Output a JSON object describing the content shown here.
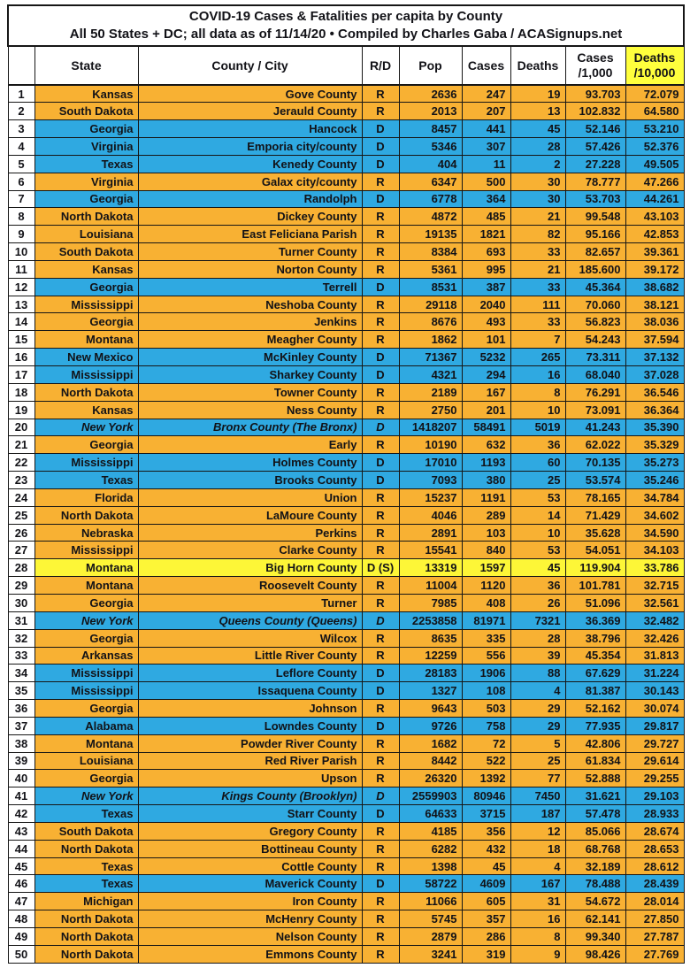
{
  "title": {
    "line1": "COVID-19 Cases & Fatalities per capita by County",
    "line2": "All 50 States + DC; all data as of 11/14/20  • Compiled by Charles Gaba / ACASignups.net"
  },
  "colors": {
    "republican_row": "#f8b133",
    "democrat_row": "#2fa9e1",
    "highlight_row": "#fdf637",
    "deaths_header_bg": "#ffff3d",
    "text": "#121217",
    "border": "#161616"
  },
  "chart_data": {
    "type": "table",
    "title": "COVID-19 Cases & Fatalities per capita by County",
    "subtitle": "All 50 States + DC; all data as of 11/14/20 • Compiled by Charles Gaba / ACASignups.net",
    "columns": {
      "rank": "",
      "state": "State",
      "county": "County / City",
      "rd": "R/D",
      "pop": "Pop",
      "cases": "Cases",
      "deaths": "Deaths",
      "cases_per_1000": "Cases\n/1,000",
      "deaths_per_10000": "Deaths\n/10,000"
    },
    "row_color_legend": {
      "R": "republican_row",
      "D": "democrat_row",
      "S": "highlight_row"
    },
    "rows": [
      {
        "rank": 1,
        "state": "Kansas",
        "county": "Gove County",
        "rd": "R",
        "pop": "2636",
        "cases": "247",
        "deaths": "19",
        "cases_per_1000": "93.703",
        "deaths_per_10000": "72.079",
        "color": "R",
        "italic": false
      },
      {
        "rank": 2,
        "state": "South Dakota",
        "county": "Jerauld County",
        "rd": "R",
        "pop": "2013",
        "cases": "207",
        "deaths": "13",
        "cases_per_1000": "102.832",
        "deaths_per_10000": "64.580",
        "color": "R",
        "italic": false
      },
      {
        "rank": 3,
        "state": "Georgia",
        "county": "Hancock",
        "rd": "D",
        "pop": "8457",
        "cases": "441",
        "deaths": "45",
        "cases_per_1000": "52.146",
        "deaths_per_10000": "53.210",
        "color": "D",
        "italic": false
      },
      {
        "rank": 4,
        "state": "Virginia",
        "county": "Emporia city/county",
        "rd": "D",
        "pop": "5346",
        "cases": "307",
        "deaths": "28",
        "cases_per_1000": "57.426",
        "deaths_per_10000": "52.376",
        "color": "D",
        "italic": false
      },
      {
        "rank": 5,
        "state": "Texas",
        "county": "Kenedy County",
        "rd": "D",
        "pop": "404",
        "cases": "11",
        "deaths": "2",
        "cases_per_1000": "27.228",
        "deaths_per_10000": "49.505",
        "color": "D",
        "italic": false
      },
      {
        "rank": 6,
        "state": "Virginia",
        "county": "Galax city/county",
        "rd": "R",
        "pop": "6347",
        "cases": "500",
        "deaths": "30",
        "cases_per_1000": "78.777",
        "deaths_per_10000": "47.266",
        "color": "R",
        "italic": false
      },
      {
        "rank": 7,
        "state": "Georgia",
        "county": "Randolph",
        "rd": "D",
        "pop": "6778",
        "cases": "364",
        "deaths": "30",
        "cases_per_1000": "53.703",
        "deaths_per_10000": "44.261",
        "color": "D",
        "italic": false
      },
      {
        "rank": 8,
        "state": "North Dakota",
        "county": "Dickey County",
        "rd": "R",
        "pop": "4872",
        "cases": "485",
        "deaths": "21",
        "cases_per_1000": "99.548",
        "deaths_per_10000": "43.103",
        "color": "R",
        "italic": false
      },
      {
        "rank": 9,
        "state": "Louisiana",
        "county": "East Feliciana Parish",
        "rd": "R",
        "pop": "19135",
        "cases": "1821",
        "deaths": "82",
        "cases_per_1000": "95.166",
        "deaths_per_10000": "42.853",
        "color": "R",
        "italic": false
      },
      {
        "rank": 10,
        "state": "South Dakota",
        "county": "Turner County",
        "rd": "R",
        "pop": "8384",
        "cases": "693",
        "deaths": "33",
        "cases_per_1000": "82.657",
        "deaths_per_10000": "39.361",
        "color": "R",
        "italic": false
      },
      {
        "rank": 11,
        "state": "Kansas",
        "county": "Norton County",
        "rd": "R",
        "pop": "5361",
        "cases": "995",
        "deaths": "21",
        "cases_per_1000": "185.600",
        "deaths_per_10000": "39.172",
        "color": "R",
        "italic": false
      },
      {
        "rank": 12,
        "state": "Georgia",
        "county": "Terrell",
        "rd": "D",
        "pop": "8531",
        "cases": "387",
        "deaths": "33",
        "cases_per_1000": "45.364",
        "deaths_per_10000": "38.682",
        "color": "D",
        "italic": false
      },
      {
        "rank": 13,
        "state": "Mississippi",
        "county": "Neshoba County",
        "rd": "R",
        "pop": "29118",
        "cases": "2040",
        "deaths": "111",
        "cases_per_1000": "70.060",
        "deaths_per_10000": "38.121",
        "color": "R",
        "italic": false
      },
      {
        "rank": 14,
        "state": "Georgia",
        "county": "Jenkins",
        "rd": "R",
        "pop": "8676",
        "cases": "493",
        "deaths": "33",
        "cases_per_1000": "56.823",
        "deaths_per_10000": "38.036",
        "color": "R",
        "italic": false
      },
      {
        "rank": 15,
        "state": "Montana",
        "county": "Meagher County",
        "rd": "R",
        "pop": "1862",
        "cases": "101",
        "deaths": "7",
        "cases_per_1000": "54.243",
        "deaths_per_10000": "37.594",
        "color": "R",
        "italic": false
      },
      {
        "rank": 16,
        "state": "New Mexico",
        "county": "McKinley County",
        "rd": "D",
        "pop": "71367",
        "cases": "5232",
        "deaths": "265",
        "cases_per_1000": "73.311",
        "deaths_per_10000": "37.132",
        "color": "D",
        "italic": false
      },
      {
        "rank": 17,
        "state": "Mississippi",
        "county": "Sharkey County",
        "rd": "D",
        "pop": "4321",
        "cases": "294",
        "deaths": "16",
        "cases_per_1000": "68.040",
        "deaths_per_10000": "37.028",
        "color": "D",
        "italic": false
      },
      {
        "rank": 18,
        "state": "North Dakota",
        "county": "Towner County",
        "rd": "R",
        "pop": "2189",
        "cases": "167",
        "deaths": "8",
        "cases_per_1000": "76.291",
        "deaths_per_10000": "36.546",
        "color": "R",
        "italic": false
      },
      {
        "rank": 19,
        "state": "Kansas",
        "county": "Ness County",
        "rd": "R",
        "pop": "2750",
        "cases": "201",
        "deaths": "10",
        "cases_per_1000": "73.091",
        "deaths_per_10000": "36.364",
        "color": "R",
        "italic": false
      },
      {
        "rank": 20,
        "state": "New York",
        "county": "Bronx County (The Bronx)",
        "rd": "D",
        "pop": "1418207",
        "cases": "58491",
        "deaths": "5019",
        "cases_per_1000": "41.243",
        "deaths_per_10000": "35.390",
        "color": "D",
        "italic": true
      },
      {
        "rank": 21,
        "state": "Georgia",
        "county": "Early",
        "rd": "R",
        "pop": "10190",
        "cases": "632",
        "deaths": "36",
        "cases_per_1000": "62.022",
        "deaths_per_10000": "35.329",
        "color": "R",
        "italic": false
      },
      {
        "rank": 22,
        "state": "Mississippi",
        "county": "Holmes County",
        "rd": "D",
        "pop": "17010",
        "cases": "1193",
        "deaths": "60",
        "cases_per_1000": "70.135",
        "deaths_per_10000": "35.273",
        "color": "D",
        "italic": false
      },
      {
        "rank": 23,
        "state": "Texas",
        "county": "Brooks County",
        "rd": "D",
        "pop": "7093",
        "cases": "380",
        "deaths": "25",
        "cases_per_1000": "53.574",
        "deaths_per_10000": "35.246",
        "color": "D",
        "italic": false
      },
      {
        "rank": 24,
        "state": "Florida",
        "county": "Union",
        "rd": "R",
        "pop": "15237",
        "cases": "1191",
        "deaths": "53",
        "cases_per_1000": "78.165",
        "deaths_per_10000": "34.784",
        "color": "R",
        "italic": false
      },
      {
        "rank": 25,
        "state": "North Dakota",
        "county": "LaMoure County",
        "rd": "R",
        "pop": "4046",
        "cases": "289",
        "deaths": "14",
        "cases_per_1000": "71.429",
        "deaths_per_10000": "34.602",
        "color": "R",
        "italic": false
      },
      {
        "rank": 26,
        "state": "Nebraska",
        "county": "Perkins",
        "rd": "R",
        "pop": "2891",
        "cases": "103",
        "deaths": "10",
        "cases_per_1000": "35.628",
        "deaths_per_10000": "34.590",
        "color": "R",
        "italic": false
      },
      {
        "rank": 27,
        "state": "Mississippi",
        "county": "Clarke County",
        "rd": "R",
        "pop": "15541",
        "cases": "840",
        "deaths": "53",
        "cases_per_1000": "54.051",
        "deaths_per_10000": "34.103",
        "color": "R",
        "italic": false
      },
      {
        "rank": 28,
        "state": "Montana",
        "county": "Big Horn County",
        "rd": "D (S)",
        "pop": "13319",
        "cases": "1597",
        "deaths": "45",
        "cases_per_1000": "119.904",
        "deaths_per_10000": "33.786",
        "color": "S",
        "italic": false
      },
      {
        "rank": 29,
        "state": "Montana",
        "county": "Roosevelt County",
        "rd": "R",
        "pop": "11004",
        "cases": "1120",
        "deaths": "36",
        "cases_per_1000": "101.781",
        "deaths_per_10000": "32.715",
        "color": "R",
        "italic": false
      },
      {
        "rank": 30,
        "state": "Georgia",
        "county": "Turner",
        "rd": "R",
        "pop": "7985",
        "cases": "408",
        "deaths": "26",
        "cases_per_1000": "51.096",
        "deaths_per_10000": "32.561",
        "color": "R",
        "italic": false
      },
      {
        "rank": 31,
        "state": "New York",
        "county": "Queens County (Queens)",
        "rd": "D",
        "pop": "2253858",
        "cases": "81971",
        "deaths": "7321",
        "cases_per_1000": "36.369",
        "deaths_per_10000": "32.482",
        "color": "D",
        "italic": true
      },
      {
        "rank": 32,
        "state": "Georgia",
        "county": "Wilcox",
        "rd": "R",
        "pop": "8635",
        "cases": "335",
        "deaths": "28",
        "cases_per_1000": "38.796",
        "deaths_per_10000": "32.426",
        "color": "R",
        "italic": false
      },
      {
        "rank": 33,
        "state": "Arkansas",
        "county": "Little River County",
        "rd": "R",
        "pop": "12259",
        "cases": "556",
        "deaths": "39",
        "cases_per_1000": "45.354",
        "deaths_per_10000": "31.813",
        "color": "R",
        "italic": false
      },
      {
        "rank": 34,
        "state": "Mississippi",
        "county": "Leflore County",
        "rd": "D",
        "pop": "28183",
        "cases": "1906",
        "deaths": "88",
        "cases_per_1000": "67.629",
        "deaths_per_10000": "31.224",
        "color": "D",
        "italic": false
      },
      {
        "rank": 35,
        "state": "Mississippi",
        "county": "Issaquena County",
        "rd": "D",
        "pop": "1327",
        "cases": "108",
        "deaths": "4",
        "cases_per_1000": "81.387",
        "deaths_per_10000": "30.143",
        "color": "D",
        "italic": false
      },
      {
        "rank": 36,
        "state": "Georgia",
        "county": "Johnson",
        "rd": "R",
        "pop": "9643",
        "cases": "503",
        "deaths": "29",
        "cases_per_1000": "52.162",
        "deaths_per_10000": "30.074",
        "color": "R",
        "italic": false
      },
      {
        "rank": 37,
        "state": "Alabama",
        "county": "Lowndes County",
        "rd": "D",
        "pop": "9726",
        "cases": "758",
        "deaths": "29",
        "cases_per_1000": "77.935",
        "deaths_per_10000": "29.817",
        "color": "D",
        "italic": false
      },
      {
        "rank": 38,
        "state": "Montana",
        "county": "Powder River County",
        "rd": "R",
        "pop": "1682",
        "cases": "72",
        "deaths": "5",
        "cases_per_1000": "42.806",
        "deaths_per_10000": "29.727",
        "color": "R",
        "italic": false
      },
      {
        "rank": 39,
        "state": "Louisiana",
        "county": "Red River Parish",
        "rd": "R",
        "pop": "8442",
        "cases": "522",
        "deaths": "25",
        "cases_per_1000": "61.834",
        "deaths_per_10000": "29.614",
        "color": "R",
        "italic": false
      },
      {
        "rank": 40,
        "state": "Georgia",
        "county": "Upson",
        "rd": "R",
        "pop": "26320",
        "cases": "1392",
        "deaths": "77",
        "cases_per_1000": "52.888",
        "deaths_per_10000": "29.255",
        "color": "R",
        "italic": false
      },
      {
        "rank": 41,
        "state": "New York",
        "county": "Kings County (Brooklyn)",
        "rd": "D",
        "pop": "2559903",
        "cases": "80946",
        "deaths": "7450",
        "cases_per_1000": "31.621",
        "deaths_per_10000": "29.103",
        "color": "D",
        "italic": true
      },
      {
        "rank": 42,
        "state": "Texas",
        "county": "Starr County",
        "rd": "D",
        "pop": "64633",
        "cases": "3715",
        "deaths": "187",
        "cases_per_1000": "57.478",
        "deaths_per_10000": "28.933",
        "color": "D",
        "italic": false
      },
      {
        "rank": 43,
        "state": "South Dakota",
        "county": "Gregory County",
        "rd": "R",
        "pop": "4185",
        "cases": "356",
        "deaths": "12",
        "cases_per_1000": "85.066",
        "deaths_per_10000": "28.674",
        "color": "R",
        "italic": false
      },
      {
        "rank": 44,
        "state": "North Dakota",
        "county": "Bottineau County",
        "rd": "R",
        "pop": "6282",
        "cases": "432",
        "deaths": "18",
        "cases_per_1000": "68.768",
        "deaths_per_10000": "28.653",
        "color": "R",
        "italic": false
      },
      {
        "rank": 45,
        "state": "Texas",
        "county": "Cottle County",
        "rd": "R",
        "pop": "1398",
        "cases": "45",
        "deaths": "4",
        "cases_per_1000": "32.189",
        "deaths_per_10000": "28.612",
        "color": "R",
        "italic": false
      },
      {
        "rank": 46,
        "state": "Texas",
        "county": "Maverick County",
        "rd": "D",
        "pop": "58722",
        "cases": "4609",
        "deaths": "167",
        "cases_per_1000": "78.488",
        "deaths_per_10000": "28.439",
        "color": "D",
        "italic": false
      },
      {
        "rank": 47,
        "state": "Michigan",
        "county": "Iron County",
        "rd": "R",
        "pop": "11066",
        "cases": "605",
        "deaths": "31",
        "cases_per_1000": "54.672",
        "deaths_per_10000": "28.014",
        "color": "R",
        "italic": false
      },
      {
        "rank": 48,
        "state": "North Dakota",
        "county": "McHenry County",
        "rd": "R",
        "pop": "5745",
        "cases": "357",
        "deaths": "16",
        "cases_per_1000": "62.141",
        "deaths_per_10000": "27.850",
        "color": "R",
        "italic": false
      },
      {
        "rank": 49,
        "state": "North Dakota",
        "county": "Nelson County",
        "rd": "R",
        "pop": "2879",
        "cases": "286",
        "deaths": "8",
        "cases_per_1000": "99.340",
        "deaths_per_10000": "27.787",
        "color": "R",
        "italic": false
      },
      {
        "rank": 50,
        "state": "North Dakota",
        "county": "Emmons County",
        "rd": "R",
        "pop": "3241",
        "cases": "319",
        "deaths": "9",
        "cases_per_1000": "98.426",
        "deaths_per_10000": "27.769",
        "color": "R",
        "italic": false
      }
    ]
  }
}
